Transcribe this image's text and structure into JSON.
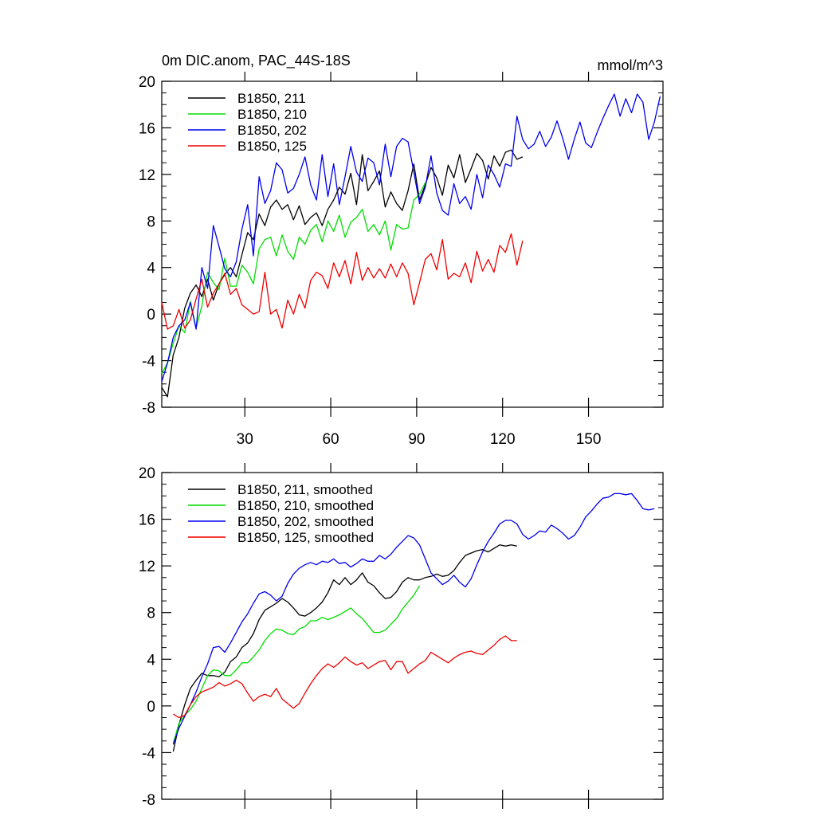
{
  "chart_data": [
    {
      "type": "line",
      "title": "0m DIC.anom, PAC_44S-18S",
      "units": "mmol/m^3",
      "xlabel": "",
      "ylabel": "",
      "xlim": [
        1,
        176
      ],
      "ylim": [
        -8,
        20
      ],
      "xticks": [
        30,
        60,
        90,
        120,
        150
      ],
      "yticks": [
        -8,
        -4,
        0,
        4,
        8,
        12,
        16,
        20
      ],
      "x_tick_labels_shown": true,
      "grid": false,
      "legend": "top-left",
      "series": [
        {
          "name": "B1850, 211",
          "color": "#000000",
          "x": [
            1,
            3,
            5,
            7,
            9,
            11,
            13,
            15,
            17,
            19,
            21,
            23,
            25,
            27,
            29,
            31,
            33,
            35,
            37,
            39,
            41,
            43,
            45,
            47,
            49,
            51,
            53,
            55,
            57,
            59,
            61,
            63,
            65,
            67,
            69,
            71,
            73,
            75,
            77,
            79,
            81,
            83,
            85,
            87,
            89,
            91,
            93,
            95,
            97,
            99,
            101,
            103,
            105,
            107,
            109,
            111,
            113,
            115,
            117,
            119,
            121,
            123,
            125,
            127
          ],
          "y": [
            -6.3,
            -7.1,
            -3.5,
            -2.0,
            0.5,
            1.8,
            2.5,
            1.5,
            3.0,
            1.2,
            2.6,
            3.4,
            4.0,
            3.2,
            5.1,
            7.0,
            6.4,
            8.6,
            7.6,
            9.2,
            9.8,
            9.0,
            9.4,
            8.1,
            9.3,
            7.7,
            8.3,
            8.7,
            7.6,
            9.0,
            9.8,
            10.9,
            10.3,
            12.1,
            9.4,
            13.7,
            10.6,
            11.4,
            12.3,
            9.2,
            10.5,
            9.5,
            8.9,
            10.6,
            12.9,
            9.8,
            11.1,
            12.6,
            11.7,
            10.2,
            12.8,
            11.7,
            13.7,
            11.3,
            12.5,
            13.8,
            13.2,
            11.6,
            13.6,
            12.7,
            13.9,
            14.1,
            13.3,
            13.5
          ]
        },
        {
          "name": "B1850, 210",
          "color": "#00dd00",
          "x": [
            1,
            3,
            5,
            7,
            9,
            11,
            13,
            15,
            17,
            19,
            21,
            23,
            25,
            27,
            29,
            31,
            33,
            35,
            37,
            39,
            41,
            43,
            45,
            47,
            49,
            51,
            53,
            55,
            57,
            59,
            61,
            63,
            65,
            67,
            69,
            71,
            73,
            75,
            77,
            79,
            81,
            83,
            85,
            87,
            89,
            91,
            93
          ],
          "y": [
            -5.1,
            -4.2,
            -2.5,
            -1.0,
            -1.6,
            1.1,
            -1.2,
            0.7,
            3.6,
            2.7,
            2.1,
            4.8,
            2.4,
            2.4,
            4.2,
            3.6,
            2.6,
            5.6,
            6.4,
            6.6,
            5.0,
            6.8,
            5.4,
            4.7,
            6.6,
            6.0,
            7.2,
            7.7,
            6.2,
            8.0,
            7.1,
            8.5,
            6.6,
            7.9,
            8.3,
            9.0,
            7.1,
            7.7,
            6.8,
            8.0,
            5.5,
            7.7,
            7.3,
            7.4,
            9.8,
            10.3,
            11.3
          ]
        },
        {
          "name": "B1850, 202",
          "color": "#0000ee",
          "x": [
            1,
            3,
            5,
            7,
            9,
            11,
            13,
            15,
            17,
            19,
            21,
            23,
            25,
            27,
            29,
            31,
            33,
            35,
            37,
            39,
            41,
            43,
            45,
            47,
            49,
            51,
            53,
            55,
            57,
            59,
            61,
            63,
            65,
            67,
            69,
            71,
            73,
            75,
            77,
            79,
            81,
            83,
            85,
            87,
            89,
            91,
            93,
            95,
            97,
            99,
            101,
            103,
            105,
            107,
            109,
            111,
            113,
            115,
            117,
            119,
            121,
            123,
            125,
            127,
            129,
            131,
            133,
            135,
            137,
            139,
            141,
            143,
            145,
            147,
            149,
            151,
            153,
            155,
            157,
            159,
            161,
            163,
            165,
            167,
            169,
            171,
            173,
            175
          ],
          "y": [
            -5.8,
            -4.2,
            -2.0,
            -1.0,
            -0.5,
            1.0,
            -1.3,
            4.0,
            2.2,
            7.6,
            5.8,
            3.9,
            3.2,
            4.5,
            7.3,
            9.4,
            5.0,
            11.8,
            9.5,
            10.6,
            13.0,
            12.4,
            10.4,
            10.8,
            12.0,
            13.5,
            11.1,
            9.8,
            13.7,
            10.1,
            12.9,
            9.4,
            11.8,
            14.4,
            12.2,
            11.4,
            13.4,
            13.0,
            11.1,
            14.6,
            11.8,
            14.4,
            15.1,
            14.8,
            12.2,
            9.5,
            10.9,
            13.6,
            10.4,
            8.9,
            8.5,
            11.2,
            9.5,
            10.1,
            9.0,
            12.0,
            10.0,
            12.8,
            12.0,
            10.9,
            12.9,
            12.7,
            17.0,
            15.0,
            14.2,
            14.6,
            15.7,
            14.4,
            15.2,
            16.6,
            15.1,
            13.3,
            15.0,
            16.5,
            14.7,
            14.3,
            15.6,
            16.8,
            17.9,
            18.9,
            17.0,
            18.5,
            17.3,
            18.9,
            18.2,
            15.0,
            16.5,
            18.7
          ]
        },
        {
          "name": "B1850, 125",
          "color": "#ee0000",
          "x": [
            1,
            3,
            5,
            7,
            9,
            11,
            13,
            15,
            17,
            19,
            21,
            23,
            25,
            27,
            29,
            31,
            33,
            35,
            37,
            39,
            41,
            43,
            45,
            47,
            49,
            51,
            53,
            55,
            57,
            59,
            61,
            63,
            65,
            67,
            69,
            71,
            73,
            75,
            77,
            79,
            81,
            83,
            85,
            87,
            89,
            91,
            93,
            95,
            97,
            99,
            101,
            103,
            105,
            107,
            109,
            111,
            113,
            115,
            117,
            119,
            121,
            123,
            125,
            127
          ],
          "y": [
            1.0,
            -1.3,
            -1.0,
            0.4,
            -1.2,
            -0.5,
            1.3,
            3.0,
            0.6,
            1.8,
            2.6,
            3.5,
            1.7,
            2.2,
            0.8,
            0.4,
            0.0,
            0.2,
            3.6,
            0.0,
            0.4,
            -1.2,
            1.2,
            0.0,
            1.7,
            0.5,
            2.9,
            3.6,
            3.3,
            2.2,
            4.4,
            3.2,
            4.6,
            2.6,
            5.3,
            2.9,
            4.0,
            3.1,
            3.9,
            3.1,
            4.3,
            3.2,
            4.4,
            3.5,
            0.8,
            2.7,
            4.7,
            5.2,
            3.8,
            6.4,
            3.0,
            3.5,
            3.2,
            4.4,
            2.7,
            5.4,
            3.7,
            4.7,
            3.6,
            5.9,
            5.3,
            6.9,
            4.2,
            6.3
          ]
        }
      ]
    },
    {
      "type": "line",
      "title": "",
      "xlabel": "",
      "ylabel": "",
      "xlim": [
        1,
        176
      ],
      "ylim": [
        -8,
        20
      ],
      "xticks": [
        30,
        60,
        90,
        120,
        150
      ],
      "yticks": [
        -8,
        -4,
        0,
        4,
        8,
        12,
        16,
        20
      ],
      "x_tick_labels_shown": false,
      "grid": false,
      "legend": "top-left",
      "series": [
        {
          "name": "B1850, 211, smoothed",
          "color": "#000000",
          "x": [
            5,
            7,
            9,
            11,
            13,
            15,
            17,
            19,
            21,
            23,
            25,
            27,
            29,
            31,
            33,
            35,
            37,
            39,
            41,
            43,
            45,
            47,
            49,
            51,
            53,
            55,
            57,
            59,
            61,
            63,
            65,
            67,
            69,
            71,
            73,
            75,
            77,
            79,
            81,
            83,
            85,
            87,
            89,
            91,
            93,
            95,
            97,
            99,
            101,
            103,
            105,
            107,
            109,
            111,
            113,
            115,
            117,
            119,
            121,
            123,
            125
          ],
          "y": [
            -3.9,
            -1.6,
            0.1,
            1.5,
            2.2,
            2.8,
            2.6,
            2.6,
            2.5,
            2.9,
            3.8,
            4.2,
            5.0,
            5.4,
            6.2,
            7.4,
            8.2,
            8.5,
            8.8,
            9.2,
            8.9,
            8.4,
            7.8,
            7.7,
            8.0,
            8.4,
            8.9,
            9.7,
            10.8,
            10.4,
            11.0,
            10.4,
            10.8,
            11.4,
            10.6,
            10.3,
            9.7,
            9.2,
            9.3,
            9.8,
            10.6,
            11.0,
            10.8,
            10.8,
            11.0,
            11.1,
            11.3,
            11.1,
            11.2,
            11.6,
            12.3,
            12.9,
            13.1,
            13.3,
            13.4,
            13.2,
            13.5,
            13.8,
            13.7,
            13.8,
            13.7
          ]
        },
        {
          "name": "B1850, 210, smoothed",
          "color": "#00dd00",
          "x": [
            5,
            7,
            9,
            11,
            13,
            15,
            17,
            19,
            21,
            23,
            25,
            27,
            29,
            31,
            33,
            35,
            37,
            39,
            41,
            43,
            45,
            47,
            49,
            51,
            53,
            55,
            57,
            59,
            61,
            63,
            65,
            67,
            69,
            71,
            73,
            75,
            77,
            79,
            81,
            83,
            85,
            87,
            89,
            91
          ],
          "y": [
            -3.2,
            -1.5,
            -0.8,
            -0.3,
            0.4,
            1.5,
            2.6,
            3.1,
            3.0,
            2.6,
            2.6,
            3.1,
            3.7,
            3.7,
            4.2,
            4.8,
            5.6,
            6.2,
            6.6,
            6.5,
            6.2,
            6.1,
            6.6,
            6.8,
            7.3,
            7.3,
            7.6,
            7.4,
            7.6,
            7.8,
            8.1,
            8.4,
            7.9,
            7.5,
            6.9,
            6.3,
            6.3,
            6.5,
            7.0,
            7.5,
            8.3,
            8.9,
            9.5,
            10.3
          ]
        },
        {
          "name": "B1850, 202, smoothed",
          "color": "#0000ee",
          "x": [
            5,
            7,
            9,
            11,
            13,
            15,
            17,
            19,
            21,
            23,
            25,
            27,
            29,
            31,
            33,
            35,
            37,
            39,
            41,
            43,
            45,
            47,
            49,
            51,
            53,
            55,
            57,
            59,
            61,
            63,
            65,
            67,
            69,
            71,
            73,
            75,
            77,
            79,
            81,
            83,
            85,
            87,
            89,
            91,
            93,
            95,
            97,
            99,
            101,
            103,
            105,
            107,
            109,
            111,
            113,
            115,
            117,
            119,
            121,
            123,
            125,
            127,
            129,
            131,
            133,
            135,
            137,
            139,
            141,
            143,
            145,
            147,
            149,
            151,
            153,
            155,
            157,
            159,
            161,
            163,
            165,
            167,
            169,
            171,
            173
          ],
          "y": [
            -3.3,
            -1.9,
            -0.9,
            0.1,
            1.2,
            2.5,
            3.6,
            5.0,
            5.1,
            4.6,
            5.4,
            6.3,
            7.2,
            7.9,
            8.8,
            9.6,
            9.8,
            9.5,
            9.0,
            9.4,
            10.5,
            11.3,
            11.8,
            12.1,
            12.3,
            12.1,
            12.4,
            12.3,
            12.6,
            12.2,
            12.3,
            11.9,
            12.2,
            12.6,
            12.4,
            12.4,
            12.9,
            12.6,
            13.0,
            13.6,
            14.1,
            14.6,
            14.4,
            13.8,
            12.6,
            11.4,
            10.9,
            10.4,
            10.7,
            11.2,
            10.6,
            10.2,
            10.9,
            12.1,
            13.2,
            14.1,
            14.8,
            15.6,
            15.9,
            15.9,
            15.6,
            14.7,
            14.3,
            14.6,
            15.0,
            14.9,
            15.5,
            15.2,
            14.8,
            14.3,
            14.6,
            15.3,
            16.2,
            16.7,
            17.3,
            17.8,
            17.9,
            18.2,
            18.2,
            18.1,
            18.2,
            17.6,
            16.9,
            16.8,
            16.9
          ]
        },
        {
          "name": "B1850, 125, smoothed",
          "color": "#ee0000",
          "x": [
            5,
            7,
            9,
            11,
            13,
            15,
            17,
            19,
            21,
            23,
            25,
            27,
            29,
            31,
            33,
            35,
            37,
            39,
            41,
            43,
            45,
            47,
            49,
            51,
            53,
            55,
            57,
            59,
            61,
            63,
            65,
            67,
            69,
            71,
            73,
            75,
            77,
            79,
            81,
            83,
            85,
            87,
            89,
            91,
            93,
            95,
            97,
            99,
            101,
            103,
            105,
            107,
            109,
            111,
            113,
            115,
            117,
            119,
            121,
            123,
            125
          ],
          "y": [
            -0.7,
            -1.0,
            -0.8,
            0.1,
            0.8,
            1.2,
            1.4,
            1.6,
            2.0,
            1.7,
            1.9,
            2.2,
            1.9,
            1.1,
            0.4,
            0.8,
            1.0,
            0.8,
            1.5,
            0.6,
            0.2,
            -0.2,
            0.2,
            1.1,
            1.9,
            2.6,
            3.2,
            3.6,
            3.3,
            3.7,
            4.2,
            3.8,
            3.5,
            3.7,
            3.2,
            3.5,
            3.8,
            3.9,
            3.1,
            3.8,
            3.8,
            2.8,
            3.2,
            3.6,
            3.9,
            4.6,
            4.3,
            4.0,
            3.7,
            4.1,
            4.4,
            4.6,
            4.7,
            4.5,
            4.4,
            4.8,
            5.2,
            5.7,
            6.0,
            5.6,
            5.6
          ]
        }
      ]
    }
  ]
}
